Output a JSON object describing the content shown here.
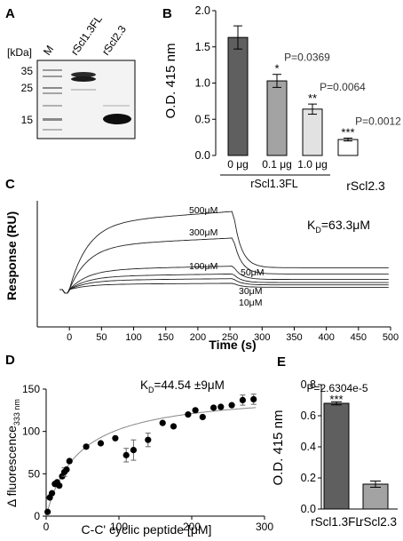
{
  "panels": {
    "A": {
      "label": "A",
      "unit_label": "[kDa]",
      "lane_labels": [
        "M",
        "rScl1.3FL",
        "rScl2.3"
      ],
      "marker_labels": [
        "35",
        "25",
        "15"
      ]
    }
  },
  "chart_data": [
    {
      "panel": "B",
      "type": "bar",
      "categories": [
        "0 μg",
        "0.1 μg",
        "1.0 μg",
        "rScl2.3"
      ],
      "values": [
        1.63,
        1.03,
        0.64,
        0.22
      ],
      "errors": [
        0.16,
        0.09,
        0.07,
        0.02
      ],
      "colors": [
        "#5f5f5f",
        "#a3a3a3",
        "#e2e2e2",
        "#ffffff"
      ],
      "p_values": [
        "",
        "P=0.0369",
        "P=0.0064",
        "P=0.0012"
      ],
      "stars": [
        "",
        "*",
        "**",
        "***"
      ],
      "group_label": "rScl1.3FL",
      "ylabel": "O.D. 415 nm",
      "ylim": [
        0,
        2.0
      ],
      "yticks": [
        "0.0",
        "0.5",
        "1.0",
        "1.5",
        "2.0"
      ],
      "grid": false
    },
    {
      "panel": "C",
      "type": "line",
      "xlabel": "Time (s)",
      "ylabel": "Response (RU)",
      "xlim": [
        -50,
        500
      ],
      "xticks": [
        "0",
        "50",
        "100",
        "150",
        "200",
        "250",
        "300",
        "350",
        "400",
        "450",
        "500"
      ],
      "kd_text": "63.3μM",
      "kd_prefix": "K",
      "kd_sub": "D",
      "series": [
        {
          "name": "500μM",
          "plateau": 1.0,
          "final": 0.28
        },
        {
          "name": "300μM",
          "plateau": 0.66,
          "final": 0.2
        },
        {
          "name": "100μM",
          "plateau": 0.3,
          "final": 0.13
        },
        {
          "name": "50μM",
          "plateau": 0.2,
          "final": 0.09
        },
        {
          "name": "30μM",
          "plateau": 0.14,
          "final": 0.06
        },
        {
          "name": "10μM",
          "plateau": 0.08,
          "final": 0.03
        }
      ],
      "grid": false
    },
    {
      "panel": "D",
      "type": "scatter",
      "xlabel": "C-C' cyclic peptide [μM]",
      "ylabel": "Δ fluorescence",
      "ylabel_sub": "333 nm",
      "xlim": [
        0,
        300
      ],
      "ylim": [
        0,
        150
      ],
      "xticks": [
        "0",
        "100",
        "200",
        "300"
      ],
      "yticks": [
        "0",
        "50",
        "100",
        "150"
      ],
      "kd_prefix": "K",
      "kd_sub": "D",
      "kd_text": "=44.54 ±9μM",
      "x": [
        2,
        5,
        8,
        12,
        15,
        18,
        22,
        25,
        28,
        32,
        55,
        75,
        95,
        110,
        120,
        140,
        160,
        175,
        195,
        205,
        215,
        230,
        240,
        255,
        270,
        285
      ],
      "y": [
        5,
        22,
        27,
        38,
        40,
        36,
        47,
        52,
        55,
        65,
        82,
        86,
        92,
        72,
        78,
        90,
        110,
        106,
        120,
        125,
        117,
        128,
        129,
        131,
        137,
        138
      ],
      "errors": [
        0,
        0,
        0,
        0,
        0,
        0,
        0,
        5,
        0,
        0,
        0,
        0,
        0,
        8,
        12,
        8,
        0,
        0,
        0,
        0,
        0,
        0,
        0,
        0,
        6,
        6
      ],
      "fit_kd": 44.54,
      "fit_bmax": 148,
      "grid": false
    },
    {
      "panel": "E",
      "type": "bar",
      "categories": [
        "rScl1.3FL",
        "rScl2.3"
      ],
      "values": [
        0.68,
        0.16
      ],
      "errors": [
        0.01,
        0.02
      ],
      "colors": [
        "#5f5f5f",
        "#a3a3a3"
      ],
      "p_value": "P=2.6304e-5",
      "stars": "***",
      "ylabel": "O.D. 415 nm",
      "ylim": [
        0,
        0.8
      ],
      "yticks": [
        "0.0",
        "0.2",
        "0.4",
        "0.6",
        "0.8"
      ],
      "grid": false
    }
  ]
}
